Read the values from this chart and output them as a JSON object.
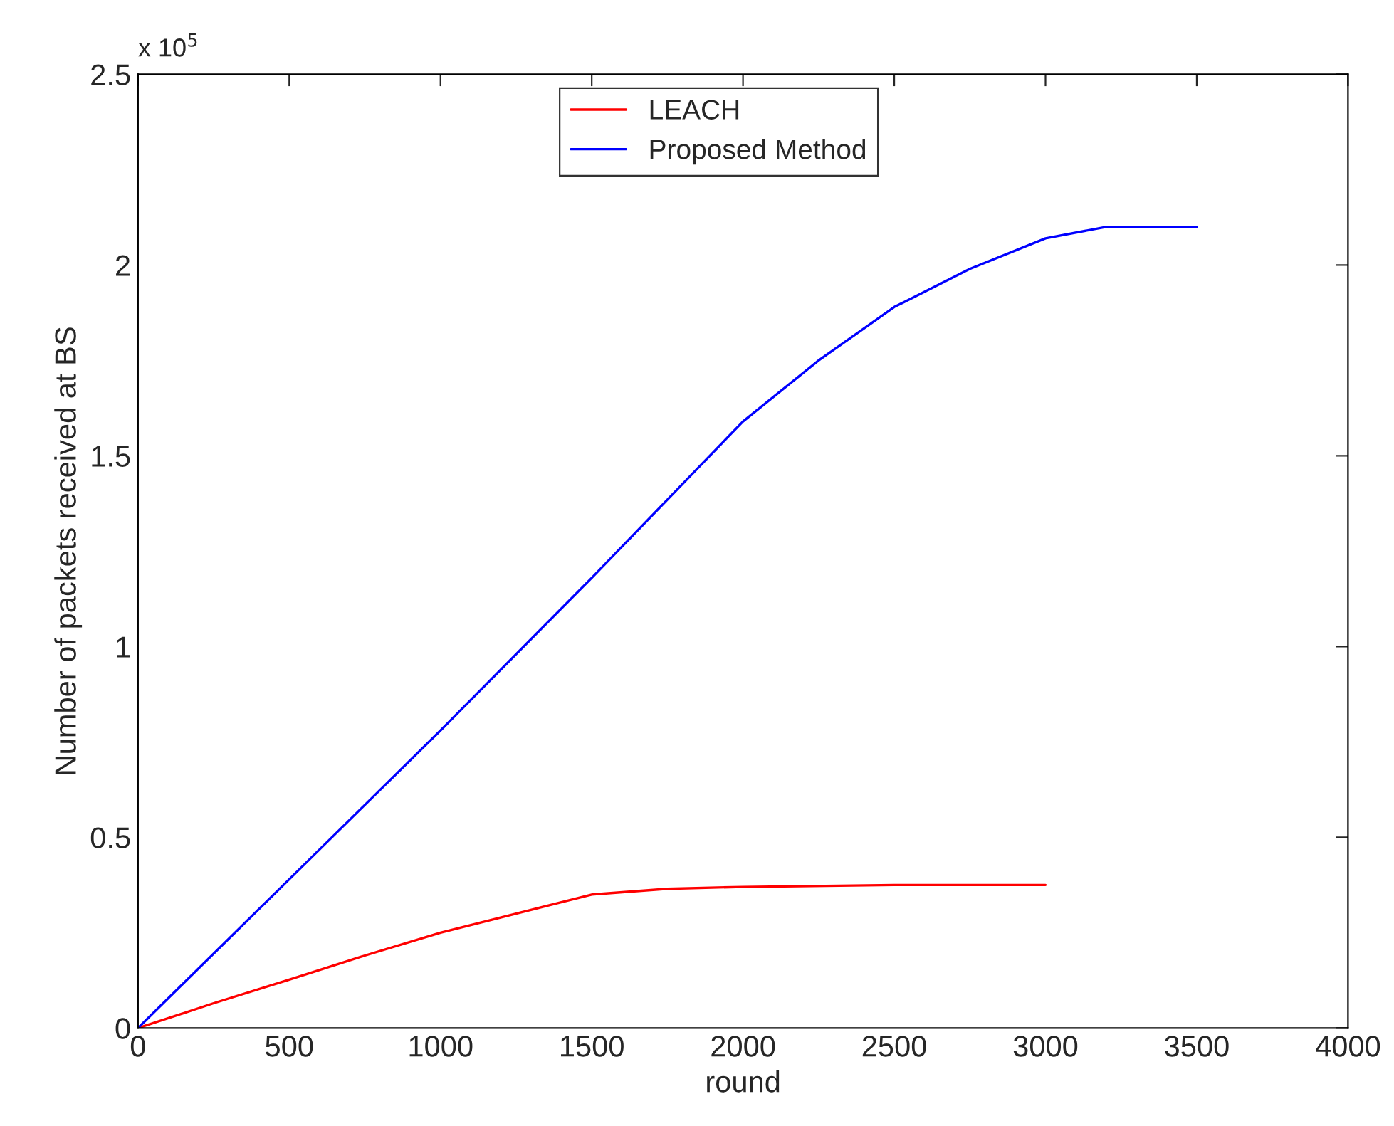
{
  "chart_data": {
    "type": "line",
    "xlabel": "round",
    "ylabel": "Number of packets received at BS",
    "annotations": [
      "x 10$^{5}$"
    ],
    "series": [
      {
        "name": "LEACH",
        "color": "#ff0000",
        "x": [
          0,
          250,
          500,
          750,
          1000,
          1250,
          1500,
          1750,
          2000,
          2500,
          3000
        ],
        "values": [
          0,
          0.065,
          0.127,
          0.19,
          0.25,
          0.3,
          0.35,
          0.365,
          0.37,
          0.375,
          0.375
        ]
      },
      {
        "name": "Proposed Method",
        "color": "#0000ff",
        "x": [
          0,
          500,
          1000,
          1500,
          2000,
          2250,
          2500,
          2750,
          3000,
          3200,
          3500
        ],
        "values": [
          0,
          0.39,
          0.78,
          1.18,
          1.59,
          1.75,
          1.89,
          1.99,
          2.07,
          2.1,
          2.1
        ]
      }
    ],
    "xlim": [
      0,
      4000
    ],
    "xticks": [
      0,
      500,
      1000,
      1500,
      2000,
      2500,
      3000,
      3500,
      4000
    ],
    "ylim": [
      0,
      2.5
    ],
    "yticks": [
      0,
      0.5,
      1,
      1.5,
      2,
      2.5
    ],
    "legend": "top",
    "grid": false,
    "line_style": "solid",
    "marker": "none"
  }
}
